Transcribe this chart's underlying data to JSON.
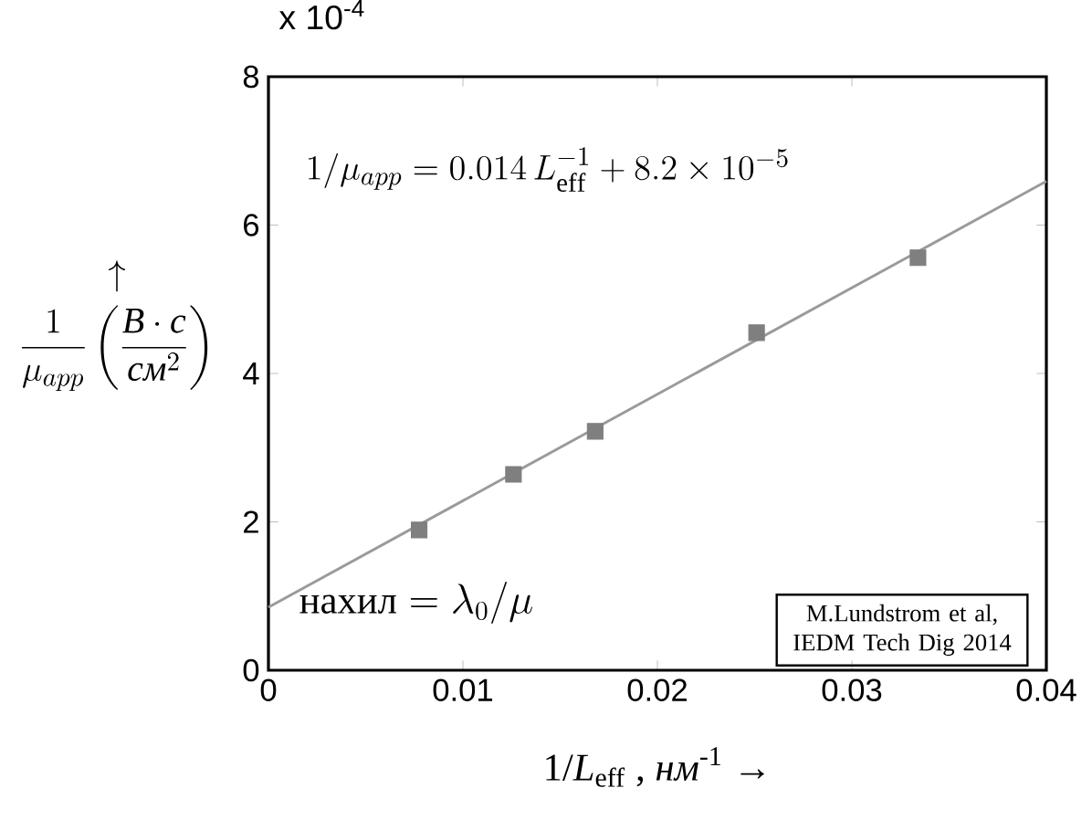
{
  "chart_data": {
    "type": "scatter",
    "x": [
      0.00775,
      0.0126,
      0.0168,
      0.0251,
      0.0334
    ],
    "series": [
      {
        "color": "#7f7f7f",
        "marker": "square",
        "values": [
          1.89,
          2.64,
          3.22,
          4.55,
          5.56
        ]
      },
      {
        "type": "line",
        "color": "#9a9a9a",
        "x": [
          0,
          0.04
        ],
        "values": [
          0.85,
          6.59
        ],
        "marker": "none",
        "line_style": "solid"
      }
    ],
    "xlabel": "1/*L*$_{eff}$ , *нм*$^{-1}$  →",
    "ylabel": "\\begin{array}{c}\\uparrow\\\\[4pt] \\dfrac{1}{\\mu_{app}}\\left(\\dfrac{\\mbox{\\textit{В}}\\cdot \\mbox{\\textit{с}}}{\\mbox{\\textit{см}}^{2}}\\right)\\end{array}",
    "xlim": [
      0,
      0.04
    ],
    "ylim": [
      0,
      8
    ],
    "xticks": [
      0,
      0.01,
      0.02,
      0.03,
      0.04
    ],
    "yticks": [
      0,
      2,
      4,
      6,
      8
    ],
    "annotations": [
      "x 10$^{-4}$",
      "1/\\mu_{app} = 0.014\\,L_{\\mathrm{eff}}^{-1} + 8.2\\times 10^{-5}",
      "\\mbox{нахил} = \\lambda_{0}/\\mu",
      "M.Lundstrom et al, IEDM Tech Dig 2014"
    ]
  }
}
